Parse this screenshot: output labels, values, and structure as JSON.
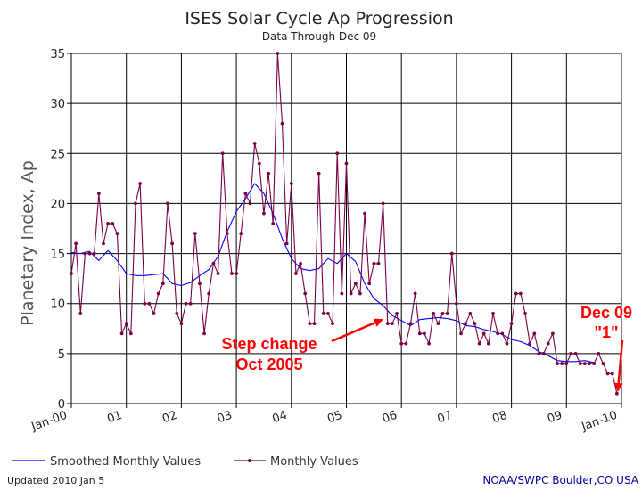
{
  "chart_data": {
    "type": "line",
    "title": "ISES Solar Cycle Ap Progression",
    "subtitle": "Data Through Dec 09",
    "ylabel": "Planetary Index, Ap",
    "xlabel": "",
    "ylim": [
      0,
      35
    ],
    "yticks": [
      0,
      5,
      10,
      15,
      20,
      25,
      30,
      35
    ],
    "xlim": [
      0,
      120
    ],
    "xticks": [
      {
        "pos": 0,
        "label": "Jan-00"
      },
      {
        "pos": 12,
        "label": "01"
      },
      {
        "pos": 24,
        "label": "02"
      },
      {
        "pos": 36,
        "label": "03"
      },
      {
        "pos": 48,
        "label": "04"
      },
      {
        "pos": 60,
        "label": "05"
      },
      {
        "pos": 72,
        "label": "06"
      },
      {
        "pos": 84,
        "label": "07"
      },
      {
        "pos": 96,
        "label": "08"
      },
      {
        "pos": 108,
        "label": "09"
      },
      {
        "pos": 120,
        "label": "Jan-10"
      }
    ],
    "grid": true,
    "legend_position": "bottom",
    "series": [
      {
        "name": "Smoothed Monthly Values",
        "color": "#0000ff",
        "marker": "none",
        "x": [
          0,
          2,
          4,
          6,
          8,
          10,
          12,
          14,
          16,
          18,
          20,
          22,
          24,
          26,
          28,
          30,
          32,
          34,
          36,
          38,
          40,
          42,
          44,
          46,
          48,
          50,
          52,
          54,
          56,
          58,
          60,
          62,
          64,
          66,
          68,
          70,
          72,
          74,
          76,
          78,
          80,
          82,
          84,
          86,
          88,
          90,
          92,
          94,
          96,
          98,
          100,
          102,
          104,
          106,
          108,
          110,
          112,
          114
        ],
        "values": [
          15.1,
          15.0,
          15.2,
          14.3,
          15.3,
          14.3,
          13.0,
          12.8,
          12.8,
          12.9,
          13.0,
          12.0,
          11.8,
          12.1,
          12.8,
          13.4,
          14.7,
          17.2,
          19.2,
          20.5,
          22.0,
          21.0,
          19.0,
          16.5,
          14.5,
          13.5,
          13.3,
          13.5,
          14.5,
          14.0,
          15.0,
          14.2,
          12.0,
          10.5,
          9.8,
          8.8,
          8.3,
          7.8,
          8.4,
          8.5,
          8.6,
          8.5,
          8.3,
          7.8,
          7.7,
          7.4,
          7.2,
          6.9,
          6.4,
          6.2,
          5.8,
          5.2,
          4.8,
          4.3,
          4.2,
          4.2,
          4.3,
          4.1
        ]
      },
      {
        "name": "Monthly Values",
        "color": "#7a0045",
        "marker": "dot",
        "x": [
          0,
          1,
          2,
          3,
          4,
          5,
          6,
          7,
          8,
          9,
          10,
          11,
          12,
          13,
          14,
          15,
          16,
          17,
          18,
          19,
          20,
          21,
          22,
          23,
          24,
          25,
          26,
          27,
          28,
          29,
          30,
          31,
          32,
          33,
          34,
          35,
          36,
          37,
          38,
          39,
          40,
          41,
          42,
          43,
          44,
          45,
          46,
          47,
          48,
          49,
          50,
          51,
          52,
          53,
          54,
          55,
          56,
          57,
          58,
          59,
          60,
          61,
          62,
          63,
          64,
          65,
          66,
          67,
          68,
          69,
          70,
          71,
          72,
          73,
          74,
          75,
          76,
          77,
          78,
          79,
          80,
          81,
          82,
          83,
          84,
          85,
          86,
          87,
          88,
          89,
          90,
          91,
          92,
          93,
          94,
          95,
          96,
          97,
          98,
          99,
          100,
          101,
          102,
          103,
          104,
          105,
          106,
          107,
          108,
          109,
          110,
          111,
          112,
          113,
          114,
          115,
          116,
          117,
          118,
          119
        ],
        "values": [
          13,
          16,
          9,
          15,
          15,
          15,
          21,
          16,
          18,
          18,
          17,
          7,
          8,
          7,
          20,
          22,
          10,
          10,
          9,
          11,
          12,
          20,
          16,
          9,
          8,
          10,
          10,
          17,
          12,
          7,
          11,
          14,
          13,
          25,
          17,
          13,
          13,
          17,
          21,
          20,
          26,
          24,
          19,
          23,
          18,
          35,
          28,
          16,
          22,
          13,
          14,
          11,
          8,
          8,
          23,
          9,
          9,
          8,
          25,
          11,
          24,
          11,
          12,
          11,
          19,
          12,
          14,
          14,
          20,
          8,
          8,
          9,
          6,
          6,
          8,
          11,
          7,
          7,
          6,
          9,
          8,
          9,
          9,
          15,
          10,
          7,
          8,
          9,
          8,
          6,
          7,
          6,
          9,
          7,
          7,
          6,
          8,
          11,
          11,
          9,
          6,
          7,
          5,
          5,
          6,
          7,
          4,
          4,
          4,
          5,
          5,
          4,
          4,
          4,
          4,
          5,
          4,
          3,
          3,
          1
        ]
      }
    ],
    "annotations": [
      {
        "lines": [
          "Step change",
          "Oct 2005"
        ],
        "color": "#ff0000"
      },
      {
        "lines": [
          "Dec 09",
          "\"1\""
        ],
        "color": "#ff0000"
      }
    ]
  },
  "legend": {
    "smoothed_label": "Smoothed Monthly Values",
    "monthly_label": "Monthly Values"
  },
  "footer": {
    "updated": "Updated 2010 Jan  5",
    "source": "NOAA/SWPC Boulder,CO USA"
  },
  "colors": {
    "smoothed": "#0000ff",
    "monthly": "#7a0045",
    "annotation": "#ff0000",
    "source_text": "#0000a0"
  }
}
